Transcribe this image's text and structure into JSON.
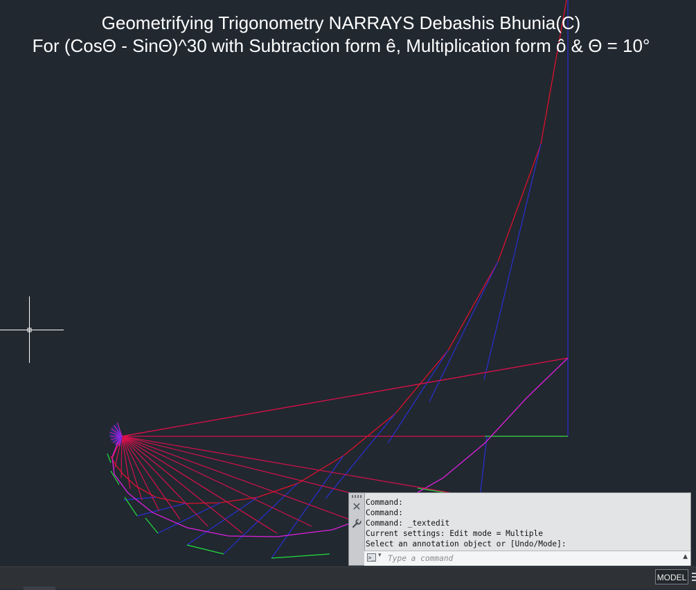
{
  "drawing": {
    "title_line1": "Geometrifying Trigonometry NARRAYS Debashis Bhunia(C)",
    "title_line2": "For (CosΘ - SinΘ)^30 with Subtraction form ê, Multiplication form ô & Θ = 10°",
    "colors": {
      "background": "#212830",
      "red": "#e0102c",
      "blue": "#2a2fd6",
      "green": "#20e040",
      "magenta": "#e020e0",
      "crimson": "#d8104c",
      "text": "#ffffff"
    }
  },
  "command_window": {
    "history": [
      "Command:",
      "Command:",
      "Command: _textedit",
      "Current settings: Edit mode = Multiple",
      "Select an annotation object or [Undo/Mode]:"
    ],
    "input_value": "",
    "input_placeholder": "Type a command"
  },
  "status_bar": {
    "model_label": "MODEL"
  }
}
